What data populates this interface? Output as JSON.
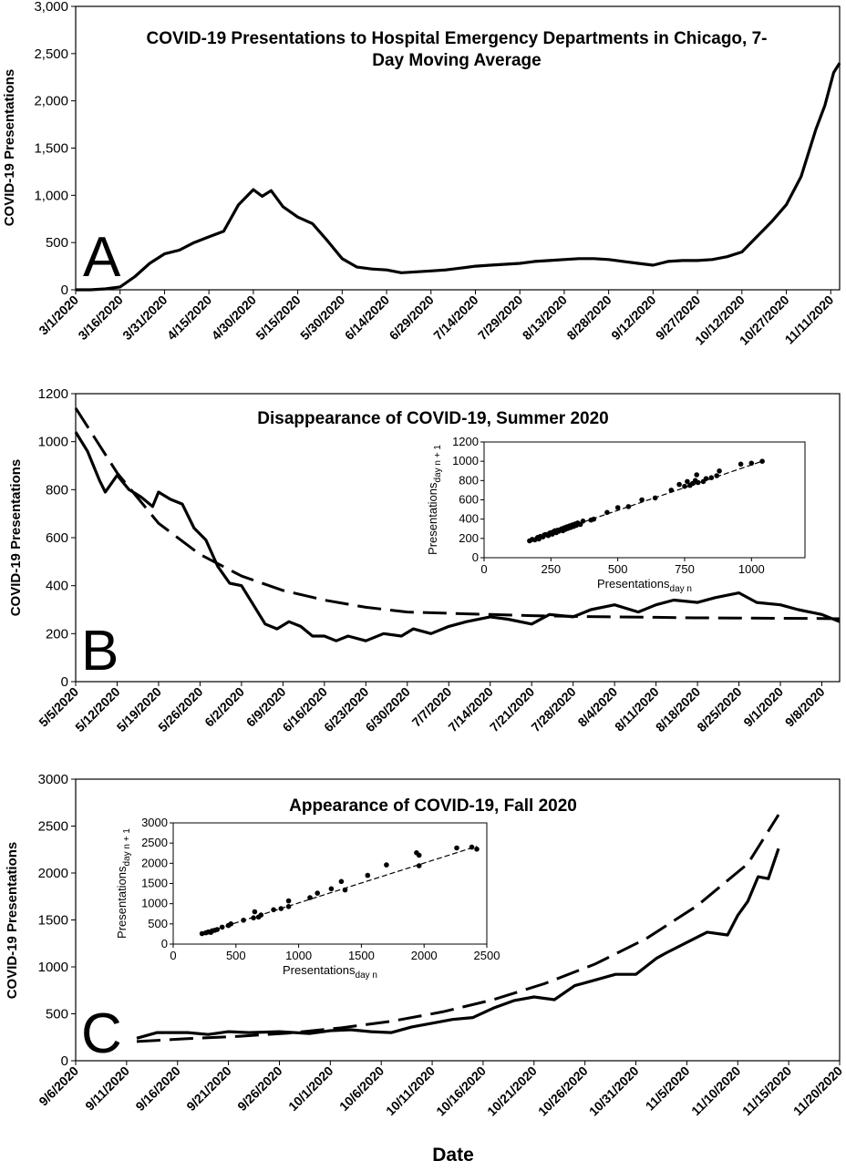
{
  "chart_data": [
    {
      "type": "line",
      "panel": "A",
      "title": "COVID-19 Presentations to Hospital Emergency Departments in Chicago, 7-Day Moving Average",
      "title_lines": [
        "COVID-19 Presentations to Hospital Emergency Departments in Chicago, 7-",
        "Day Moving Average"
      ],
      "ylabel": "COVID-19 Presentations",
      "xlabel": "",
      "ylim": [
        0,
        3000
      ],
      "yticks": [
        "0",
        "500",
        "1,000",
        "1,500",
        "2,000",
        "2,500",
        "3,000"
      ],
      "xticks": [
        "3/1/2020",
        "3/16/2020",
        "3/31/2020",
        "4/15/2020",
        "4/30/2020",
        "5/15/2020",
        "5/30/2020",
        "6/14/2020",
        "6/29/2020",
        "7/14/2020",
        "7/29/2020",
        "8/13/2020",
        "8/28/2020",
        "9/12/2020",
        "9/27/2020",
        "10/12/2020",
        "10/27/2020",
        "11/11/2020"
      ],
      "series": [
        {
          "style": "solid",
          "x": [
            "3/1/2020",
            "3/6/2020",
            "3/11/2020",
            "3/16/2020",
            "3/21/2020",
            "3/26/2020",
            "3/31/2020",
            "4/5/2020",
            "4/10/2020",
            "4/15/2020",
            "4/20/2020",
            "4/25/2020",
            "4/30/2020",
            "5/3/2020",
            "5/6/2020",
            "5/10/2020",
            "5/15/2020",
            "5/20/2020",
            "5/25/2020",
            "5/30/2020",
            "6/4/2020",
            "6/9/2020",
            "6/14/2020",
            "6/19/2020",
            "6/24/2020",
            "6/29/2020",
            "7/4/2020",
            "7/9/2020",
            "7/14/2020",
            "7/19/2020",
            "7/24/2020",
            "7/29/2020",
            "8/3/2020",
            "8/8/2020",
            "8/13/2020",
            "8/18/2020",
            "8/23/2020",
            "8/28/2020",
            "9/2/2020",
            "9/7/2020",
            "9/12/2020",
            "9/17/2020",
            "9/22/2020",
            "9/27/2020",
            "10/2/2020",
            "10/7/2020",
            "10/12/2020",
            "10/17/2020",
            "10/22/2020",
            "10/27/2020",
            "11/1/2020",
            "11/6/2020",
            "11/9/2020",
            "11/12/2020",
            "11/14/2020"
          ],
          "y": [
            0,
            0,
            10,
            30,
            140,
            280,
            380,
            420,
            500,
            560,
            620,
            900,
            1060,
            990,
            1050,
            880,
            770,
            700,
            520,
            330,
            240,
            220,
            210,
            180,
            190,
            200,
            210,
            230,
            250,
            260,
            270,
            280,
            300,
            310,
            320,
            330,
            330,
            320,
            300,
            280,
            260,
            300,
            310,
            310,
            320,
            350,
            400,
            560,
            720,
            900,
            1200,
            1700,
            1950,
            2300,
            2400
          ]
        }
      ]
    },
    {
      "type": "line",
      "panel": "B",
      "title": "Disappearance of COVID-19, Summer 2020",
      "ylabel": "COVID-19 Presentations",
      "xlabel": "",
      "ylim": [
        0,
        1200
      ],
      "yticks": [
        "0",
        "200",
        "400",
        "600",
        "800",
        "1000",
        "1200"
      ],
      "xticks": [
        "5/5/2020",
        "5/12/2020",
        "5/19/2020",
        "5/26/2020",
        "6/2/2020",
        "6/9/2020",
        "6/16/2020",
        "6/23/2020",
        "6/30/2020",
        "7/7/2020",
        "7/14/2020",
        "7/21/2020",
        "7/28/2020",
        "8/4/2020",
        "8/11/2020",
        "8/18/2020",
        "8/25/2020",
        "9/1/2020",
        "9/8/2020"
      ],
      "series": [
        {
          "style": "solid",
          "x": [
            "5/5/2020",
            "5/7/2020",
            "5/9/2020",
            "5/10/2020",
            "5/12/2020",
            "5/14/2020",
            "5/16/2020",
            "5/18/2020",
            "5/19/2020",
            "5/21/2020",
            "5/23/2020",
            "5/25/2020",
            "5/27/2020",
            "5/29/2020",
            "5/31/2020",
            "6/2/2020",
            "6/4/2020",
            "6/6/2020",
            "6/8/2020",
            "6/10/2020",
            "6/12/2020",
            "6/14/2020",
            "6/16/2020",
            "6/18/2020",
            "6/20/2020",
            "6/23/2020",
            "6/26/2020",
            "6/29/2020",
            "7/1/2020",
            "7/4/2020",
            "7/7/2020",
            "7/10/2020",
            "7/14/2020",
            "7/17/2020",
            "7/21/2020",
            "7/24/2020",
            "7/28/2020",
            "7/31/2020",
            "8/4/2020",
            "8/8/2020",
            "8/11/2020",
            "8/14/2020",
            "8/18/2020",
            "8/21/2020",
            "8/25/2020",
            "8/28/2020",
            "9/1/2020",
            "9/4/2020",
            "9/8/2020",
            "9/11/2020"
          ],
          "y": [
            1040,
            960,
            840,
            790,
            860,
            800,
            770,
            730,
            790,
            760,
            740,
            640,
            590,
            480,
            410,
            400,
            320,
            240,
            220,
            250,
            230,
            190,
            190,
            170,
            190,
            170,
            200,
            190,
            220,
            200,
            230,
            250,
            270,
            260,
            240,
            280,
            270,
            300,
            320,
            290,
            320,
            340,
            330,
            350,
            370,
            330,
            320,
            300,
            280,
            250
          ]
        },
        {
          "style": "dashed",
          "name": "fit",
          "x": [
            "5/5/2020",
            "5/12/2020",
            "5/19/2020",
            "5/26/2020",
            "6/2/2020",
            "6/9/2020",
            "6/16/2020",
            "6/23/2020",
            "6/30/2020",
            "7/7/2020",
            "7/14/2020",
            "7/21/2020",
            "7/28/2020",
            "8/4/2020",
            "8/11/2020",
            "8/18/2020",
            "8/25/2020",
            "9/1/2020",
            "9/8/2020",
            "9/11/2020"
          ],
          "y": [
            1140,
            870,
            660,
            530,
            440,
            380,
            340,
            310,
            290,
            285,
            280,
            275,
            272,
            270,
            268,
            266,
            265,
            264,
            263,
            262
          ]
        }
      ],
      "inset": {
        "type": "scatter",
        "xlabel_main": "Presentations",
        "xlabel_sub": "day n",
        "ylabel_main": "Presentations",
        "ylabel_sub": "day n + 1",
        "xlim": [
          0,
          1200
        ],
        "ylim": [
          0,
          1200
        ],
        "xticks": [
          "0",
          "250",
          "500",
          "750",
          "1000"
        ],
        "yticks": [
          "0",
          "200",
          "400",
          "600",
          "800",
          "1000",
          "1200"
        ],
        "fit": [
          [
            170,
            180
          ],
          [
            1040,
            1000
          ]
        ],
        "points": [
          [
            170,
            175
          ],
          [
            180,
            190
          ],
          [
            190,
            185
          ],
          [
            200,
            210
          ],
          [
            205,
            195
          ],
          [
            210,
            220
          ],
          [
            220,
            215
          ],
          [
            225,
            235
          ],
          [
            230,
            240
          ],
          [
            240,
            230
          ],
          [
            245,
            255
          ],
          [
            250,
            260
          ],
          [
            255,
            245
          ],
          [
            260,
            270
          ],
          [
            265,
            280
          ],
          [
            270,
            260
          ],
          [
            275,
            285
          ],
          [
            280,
            275
          ],
          [
            285,
            290
          ],
          [
            290,
            300
          ],
          [
            295,
            280
          ],
          [
            300,
            310
          ],
          [
            305,
            295
          ],
          [
            310,
            320
          ],
          [
            315,
            305
          ],
          [
            320,
            330
          ],
          [
            325,
            315
          ],
          [
            330,
            340
          ],
          [
            335,
            325
          ],
          [
            340,
            350
          ],
          [
            345,
            335
          ],
          [
            350,
            360
          ],
          [
            360,
            345
          ],
          [
            370,
            380
          ],
          [
            400,
            390
          ],
          [
            410,
            400
          ],
          [
            460,
            470
          ],
          [
            500,
            520
          ],
          [
            540,
            530
          ],
          [
            590,
            600
          ],
          [
            640,
            620
          ],
          [
            700,
            700
          ],
          [
            730,
            760
          ],
          [
            750,
            740
          ],
          [
            760,
            790
          ],
          [
            770,
            750
          ],
          [
            780,
            770
          ],
          [
            790,
            800
          ],
          [
            795,
            860
          ],
          [
            800,
            780
          ],
          [
            820,
            790
          ],
          [
            830,
            820
          ],
          [
            850,
            830
          ],
          [
            870,
            850
          ],
          [
            880,
            900
          ],
          [
            960,
            970
          ],
          [
            1000,
            980
          ],
          [
            1040,
            1000
          ]
        ]
      }
    },
    {
      "type": "line",
      "panel": "C",
      "title": "Appearance of COVID-19, Fall 2020",
      "ylabel": "COVID-19 Presentations",
      "xlabel": "Date",
      "ylim": [
        0,
        3000
      ],
      "yticks": [
        "0",
        "500",
        "1000",
        "1500",
        "2000",
        "2500",
        "3000"
      ],
      "xticks": [
        "9/6/2020",
        "9/11/2020",
        "9/16/2020",
        "9/21/2020",
        "9/26/2020",
        "10/1/2020",
        "10/6/2020",
        "10/11/2020",
        "10/16/2020",
        "10/21/2020",
        "10/26/2020",
        "10/31/2020",
        "11/5/2020",
        "11/10/2020",
        "11/15/2020",
        "11/20/2020"
      ],
      "series": [
        {
          "style": "solid",
          "x": [
            "9/12/2020",
            "9/14/2020",
            "9/17/2020",
            "9/19/2020",
            "9/21/2020",
            "9/23/2020",
            "9/26/2020",
            "9/29/2020",
            "10/1/2020",
            "10/3/2020",
            "10/5/2020",
            "10/7/2020",
            "10/9/2020",
            "10/11/2020",
            "10/13/2020",
            "10/15/2020",
            "10/17/2020",
            "10/19/2020",
            "10/21/2020",
            "10/23/2020",
            "10/25/2020",
            "10/27/2020",
            "10/29/2020",
            "10/31/2020",
            "11/2/2020",
            "11/3/2020",
            "11/5/2020",
            "11/7/2020",
            "11/9/2020",
            "11/10/2020",
            "11/11/2020",
            "11/12/2020",
            "11/13/2020",
            "11/14/2020"
          ],
          "y": [
            240,
            300,
            300,
            280,
            310,
            300,
            310,
            290,
            320,
            330,
            310,
            300,
            360,
            400,
            440,
            460,
            560,
            640,
            680,
            650,
            800,
            860,
            920,
            920,
            1090,
            1150,
            1260,
            1370,
            1340,
            1550,
            1700,
            1960,
            1940,
            2260
          ]
        },
        {
          "style": "dashed",
          "name": "fit",
          "x": [
            "9/12/2020",
            "9/17/2020",
            "9/22/2020",
            "9/27/2020",
            "10/2/2020",
            "10/7/2020",
            "10/12/2020",
            "10/17/2020",
            "10/22/2020",
            "10/27/2020",
            "11/1/2020",
            "11/6/2020",
            "11/11/2020",
            "11/14/2020"
          ],
          "y": [
            205,
            235,
            260,
            295,
            350,
            420,
            520,
            650,
            820,
            1030,
            1300,
            1650,
            2100,
            2620
          ]
        }
      ],
      "inset": {
        "type": "scatter",
        "xlabel_main": "Presentations",
        "xlabel_sub": "day n",
        "ylabel_main": "Presentations",
        "ylabel_sub": "day n + 1",
        "xlim": [
          0,
          2500
        ],
        "ylim": [
          0,
          3000
        ],
        "xticks": [
          "0",
          "500",
          "1000",
          "1500",
          "2000",
          "2500"
        ],
        "yticks": [
          "0",
          "500",
          "1000",
          "1500",
          "2000",
          "2500",
          "3000"
        ],
        "fit": [
          [
            230,
            260
          ],
          [
            2420,
            2420
          ]
        ],
        "points": [
          [
            230,
            260
          ],
          [
            260,
            280
          ],
          [
            280,
            300
          ],
          [
            300,
            290
          ],
          [
            310,
            330
          ],
          [
            330,
            340
          ],
          [
            350,
            360
          ],
          [
            390,
            420
          ],
          [
            440,
            460
          ],
          [
            460,
            500
          ],
          [
            560,
            590
          ],
          [
            640,
            650
          ],
          [
            680,
            670
          ],
          [
            700,
            720
          ],
          [
            650,
            800
          ],
          [
            800,
            850
          ],
          [
            860,
            880
          ],
          [
            920,
            930
          ],
          [
            920,
            1070
          ],
          [
            1090,
            1150
          ],
          [
            1150,
            1260
          ],
          [
            1260,
            1370
          ],
          [
            1370,
            1340
          ],
          [
            1340,
            1550
          ],
          [
            1550,
            1700
          ],
          [
            1700,
            1960
          ],
          [
            1960,
            1940
          ],
          [
            1940,
            2260
          ],
          [
            1960,
            2200
          ],
          [
            2260,
            2380
          ],
          [
            2380,
            2400
          ],
          [
            2420,
            2350
          ]
        ]
      }
    }
  ]
}
